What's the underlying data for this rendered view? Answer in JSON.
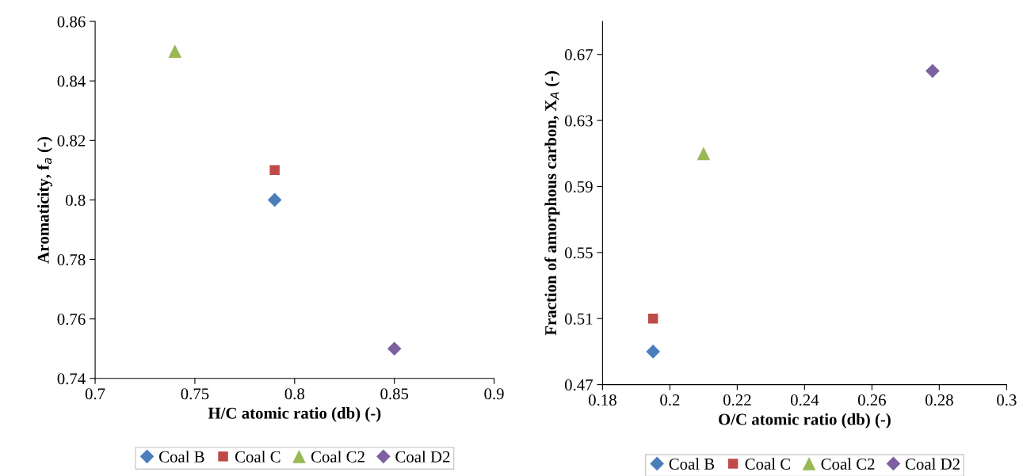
{
  "chart_data": [
    {
      "type": "scatter",
      "xlabel": "H/C atomic ratio (db) (-)",
      "ylabel": "Aromaticity, f$_{a}$ (-)",
      "xlim": [
        0.7,
        0.9
      ],
      "xticks": [
        0.7,
        0.75,
        0.8,
        0.85,
        0.9
      ],
      "ylim": [
        0.74,
        0.86
      ],
      "yticks": [
        0.74,
        0.76,
        0.78,
        {
          "value": 0.8,
          "label": "0.8"
        },
        0.82,
        0.84,
        0.86
      ],
      "grid": false,
      "legend": "bottom",
      "series": [
        {
          "name": "Coal B",
          "color": "#4a7ebb",
          "marker": "diamond",
          "x": [
            0.79
          ],
          "values": [
            0.8
          ]
        },
        {
          "name": "Coal C",
          "color": "#be4b48",
          "marker": "square",
          "x": [
            0.79
          ],
          "values": [
            0.81
          ]
        },
        {
          "name": "Coal C2",
          "color": "#98b954",
          "marker": "triangle",
          "x": [
            0.74
          ],
          "values": [
            0.85
          ]
        },
        {
          "name": "Coal D2",
          "color": "#7d60a0",
          "marker": "diamond",
          "x": [
            0.85
          ],
          "values": [
            0.75
          ]
        }
      ]
    },
    {
      "type": "scatter",
      "xlabel": "O/C atomic ratio (db) (-)",
      "ylabel": "Fraction of amorphous carbon, X$_{A}$ (-)",
      "xlim": [
        0.18,
        0.3
      ],
      "xticks": [
        0.18,
        {
          "value": 0.2,
          "label": "0.2"
        },
        0.22,
        0.24,
        0.26,
        0.28,
        {
          "value": 0.3,
          "label": "0.3"
        }
      ],
      "ylim": [
        0.47,
        0.69
      ],
      "yticks": [
        0.47,
        0.51,
        0.55,
        0.59,
        0.63,
        0.67
      ],
      "grid": false,
      "legend": "bottom",
      "series": [
        {
          "name": "Coal B",
          "color": "#4a7ebb",
          "marker": "diamond",
          "x": [
            0.195
          ],
          "values": [
            0.49
          ]
        },
        {
          "name": "Coal C",
          "color": "#be4b48",
          "marker": "square",
          "x": [
            0.195
          ],
          "values": [
            0.51
          ]
        },
        {
          "name": "Coal C2",
          "color": "#98b954",
          "marker": "triangle",
          "x": [
            0.21
          ],
          "values": [
            0.61
          ]
        },
        {
          "name": "Coal D2",
          "color": "#7d60a0",
          "marker": "diamond",
          "x": [
            0.278
          ],
          "values": [
            0.66
          ]
        }
      ]
    }
  ]
}
